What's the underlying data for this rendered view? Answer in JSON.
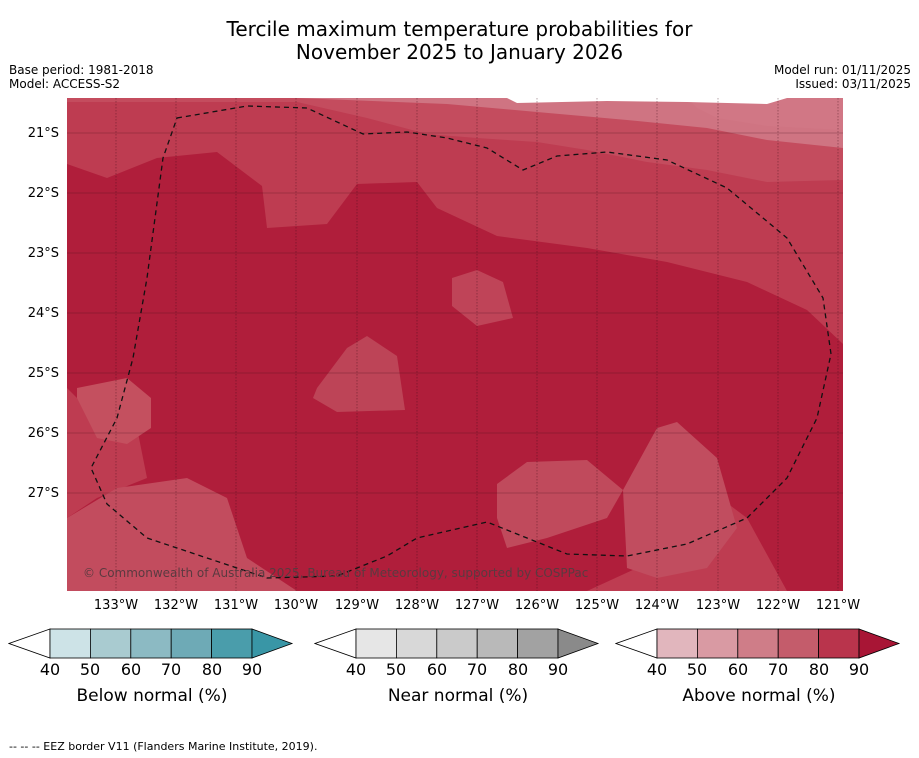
{
  "title_line1": "Tercile maximum temperature probabilities for",
  "title_line2": "November 2025 to January 2026",
  "base_period": "Base period: 1981-2018",
  "model": "Model: ACCESS-S2",
  "model_run": "Model run: 01/11/2025",
  "issued": "Issued: 03/11/2025",
  "map": {
    "lat_labels": [
      "21°S",
      "22°S",
      "23°S",
      "24°S",
      "25°S",
      "26°S",
      "27°S"
    ],
    "lon_labels": [
      "133°W",
      "132°W",
      "131°W",
      "130°W",
      "129°W",
      "128°W",
      "127°W",
      "126°W",
      "125°W",
      "124°W",
      "123°W",
      "122°W",
      "121°W"
    ],
    "copyright": "© Commonwealth of Australia 2025, Bureau of Meteorology, supported by COSPPac"
  },
  "legends": [
    {
      "title": "Below normal (%)",
      "ticks": [
        "40",
        "50",
        "60",
        "70",
        "80",
        "90"
      ],
      "colors": [
        "#ffffff",
        "#cde3e7",
        "#a9cbd0",
        "#8cbac3",
        "#6eaab6",
        "#4a9dab",
        "#3996a6"
      ]
    },
    {
      "title": "Near normal (%)",
      "ticks": [
        "40",
        "50",
        "60",
        "70",
        "80",
        "90"
      ],
      "colors": [
        "#ffffff",
        "#e6e6e6",
        "#d8d8d8",
        "#cacaca",
        "#b9b9b9",
        "#a2a2a2",
        "#8a8a8a"
      ]
    },
    {
      "title": "Above normal (%)",
      "ticks": [
        "40",
        "50",
        "60",
        "70",
        "80",
        "90"
      ],
      "colors": [
        "#ffffff",
        "#e1b6bd",
        "#d99aa3",
        "#cf7d88",
        "#c45c6b",
        "#b9344c",
        "#a81535"
      ]
    }
  ],
  "footnote": "--  --  -- EEZ border V11 (Flanders Marine Institute, 2019)."
}
